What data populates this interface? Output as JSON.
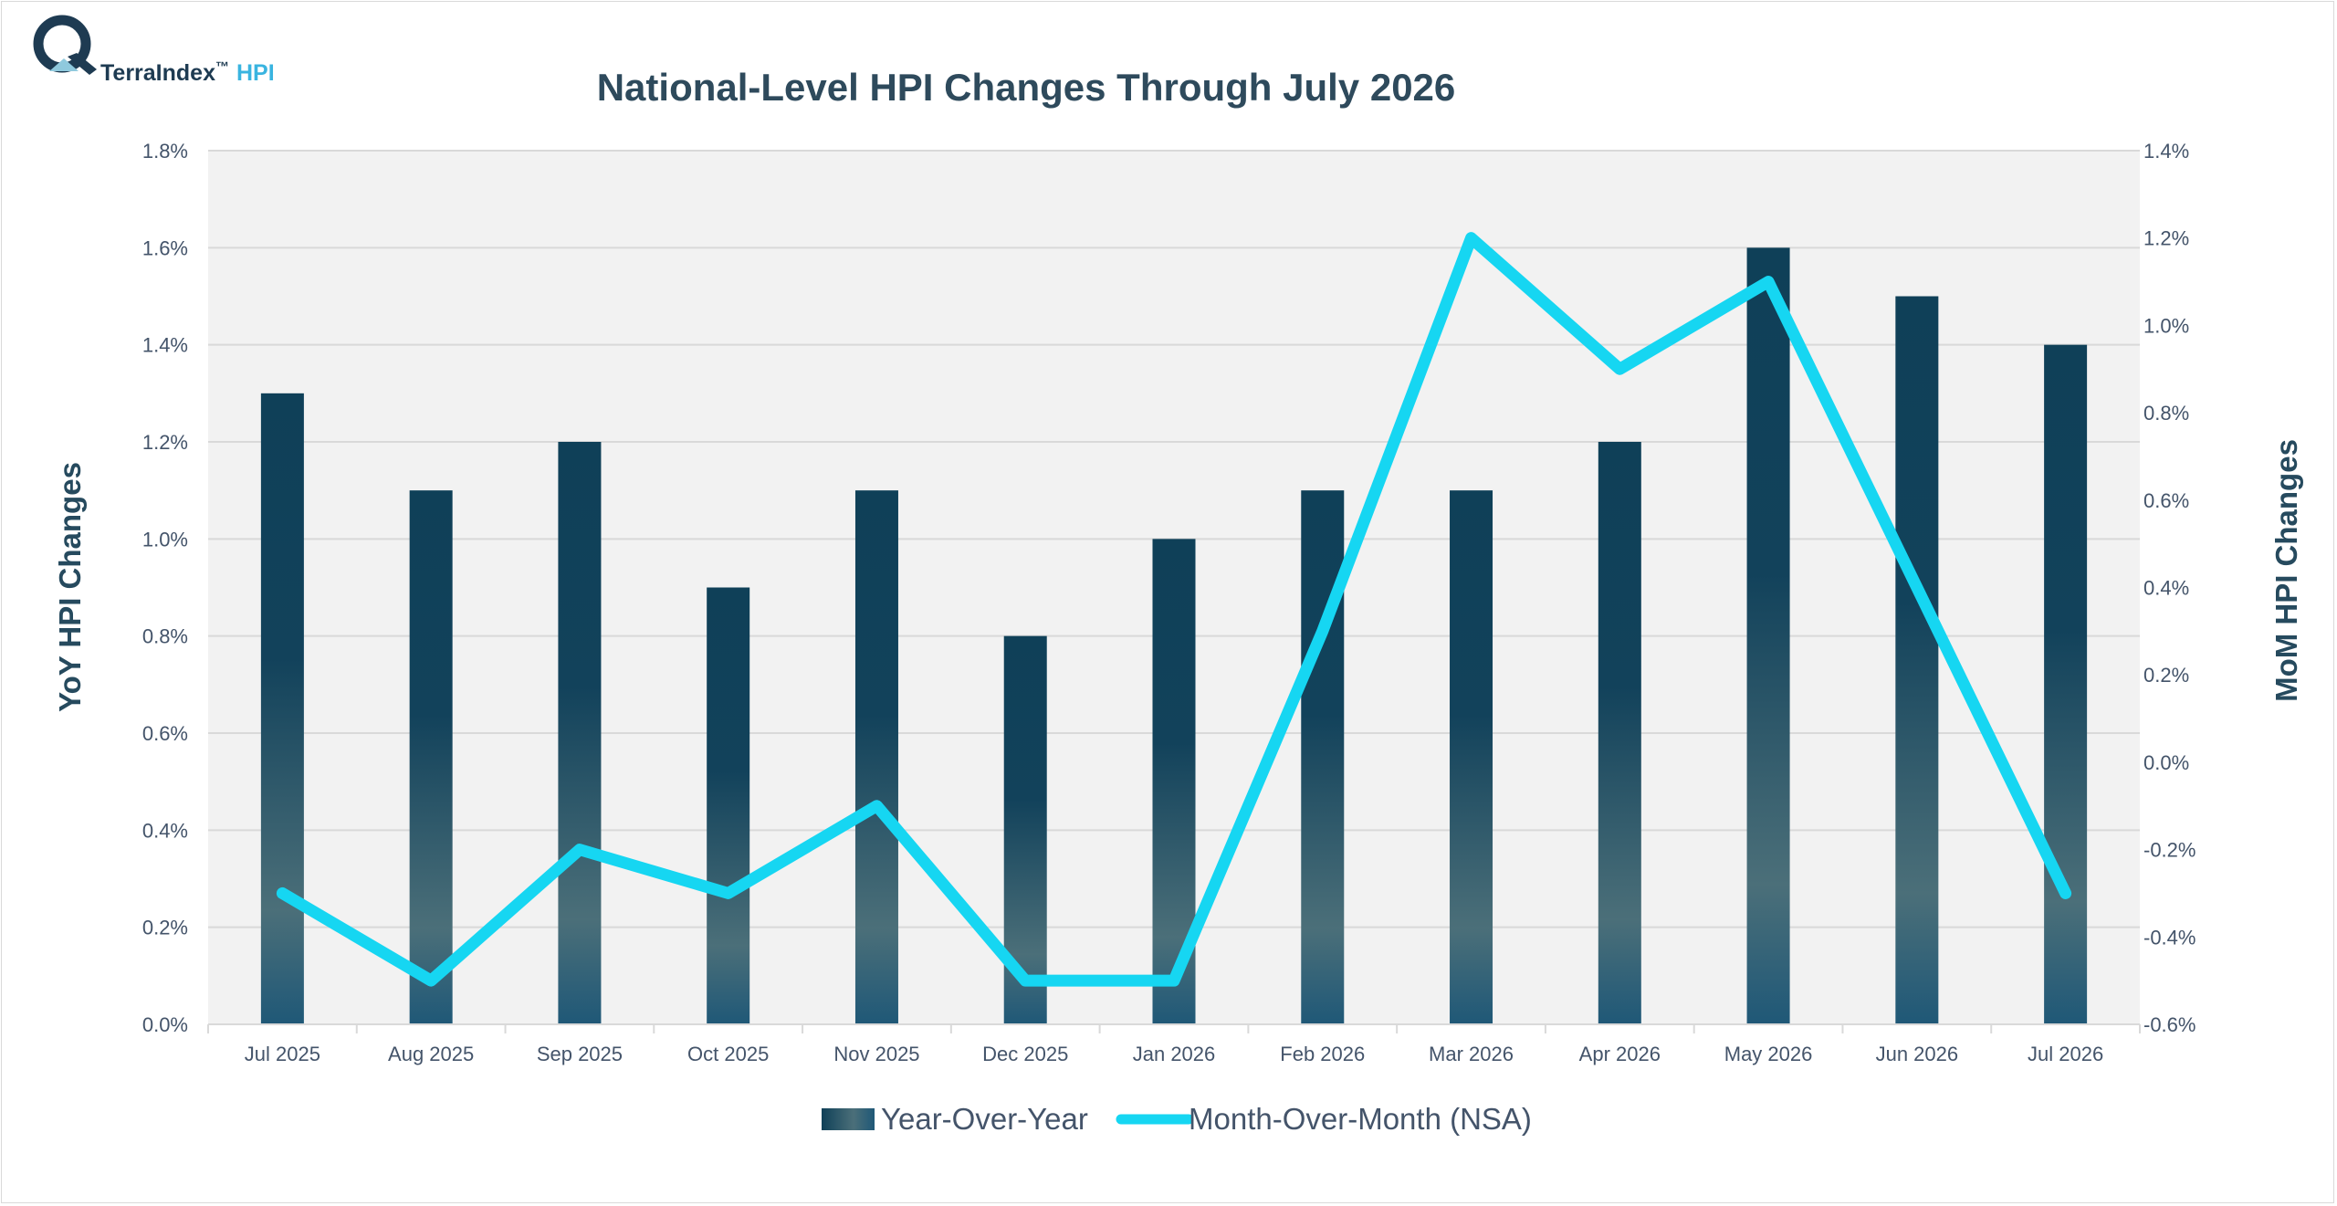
{
  "logo": {
    "brand": "TerraIndex",
    "tm": "™",
    "suffix": "HPI"
  },
  "chart_data": {
    "type": "bar+line",
    "title": "National-Level HPI Changes Through July 2026",
    "categories": [
      "Jul 2025",
      "Aug 2025",
      "Sep 2025",
      "Oct 2025",
      "Nov 2025",
      "Dec 2025",
      "Jan 2026",
      "Feb 2026",
      "Mar 2026",
      "Apr 2026",
      "May 2026",
      "Jun 2026",
      "Jul 2026"
    ],
    "series": [
      {
        "name": "Year-Over-Year",
        "type": "bar",
        "axis": "left",
        "values": [
          1.3,
          1.1,
          1.2,
          0.9,
          1.1,
          0.8,
          1.0,
          1.1,
          1.1,
          1.2,
          1.6,
          1.5,
          1.4
        ],
        "color_top": "#0f4058",
        "color_mid": "#4b6f79",
        "color_bottom": "#1f5877"
      },
      {
        "name": "Month-Over-Month (NSA)",
        "type": "line",
        "axis": "right",
        "values": [
          -0.3,
          -0.5,
          -0.2,
          -0.3,
          -0.1,
          -0.5,
          -0.5,
          0.3,
          1.2,
          0.9,
          1.1,
          0.4,
          -0.3
        ],
        "color": "#16d6f2"
      }
    ],
    "y_left": {
      "label": "YoY HPI Changes",
      "range": [
        0.0,
        1.8
      ],
      "ticks": [
        0.0,
        0.2,
        0.4,
        0.6,
        0.8,
        1.0,
        1.2,
        1.4,
        1.6,
        1.8
      ],
      "tick_labels": [
        "0.0%",
        "0.2%",
        "0.4%",
        "0.6%",
        "0.8%",
        "1.0%",
        "1.2%",
        "1.4%",
        "1.6%",
        "1.8%"
      ]
    },
    "y_right": {
      "label": "MoM HPI Changes",
      "range": [
        -0.6,
        1.4
      ],
      "ticks": [
        -0.6,
        -0.4,
        -0.2,
        0.0,
        0.2,
        0.4,
        0.6,
        0.8,
        1.0,
        1.2,
        1.4
      ],
      "tick_labels": [
        "-0.6%",
        "-0.4%",
        "-0.2%",
        "0.0%",
        "0.2%",
        "0.4%",
        "0.6%",
        "0.8%",
        "1.0%",
        "1.2%",
        "1.4%"
      ]
    },
    "grid": true,
    "plot_background": "#f2f2f2",
    "legend": {
      "position": "bottom",
      "entries": [
        "Year-Over-Year",
        "Month-Over-Month (NSA)"
      ]
    }
  }
}
